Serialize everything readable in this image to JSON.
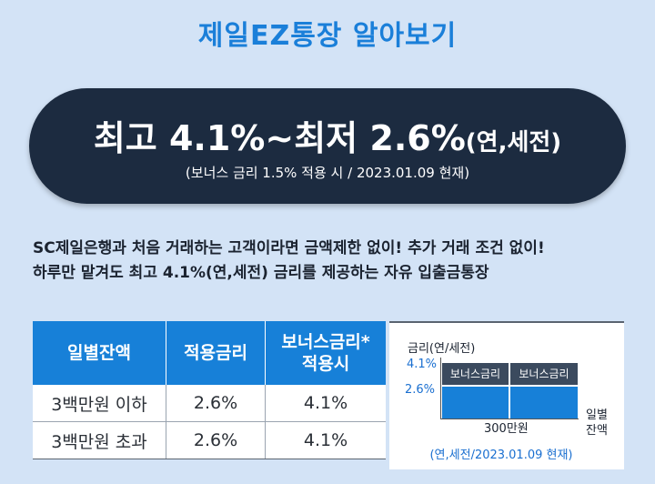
{
  "title": "제일EZ통장 알아보기",
  "headline": {
    "prefix": "최고 ",
    "max_rate": "4.1%",
    "tilde": "~",
    "min_label": "최저 ",
    "min_rate": "2.6%",
    "suffix": "(연,세전)",
    "note": "(보너스 금리 1.5% 적용 시 / 2023.01.09 현재)"
  },
  "description": [
    "SC제일은행과 처음 거래하는 고객이라면 금액제한 없이! 추가 거래 조건 없이!",
    "하루만 맡겨도 최고 4.1%(연,세전) 금리를 제공하는 자유 입출금통장"
  ],
  "table": {
    "headers": [
      "일별잔액",
      "적용금리",
      "보너스금리*",
      "적용시"
    ],
    "rows": [
      [
        "3백만원 이하",
        "2.6%",
        "4.1%"
      ],
      [
        "3백만원 초과",
        "2.6%",
        "4.1%"
      ]
    ]
  },
  "diagram": {
    "y_label": "금리(연/세전)",
    "y_ticks": [
      "4.1%",
      "2.6%"
    ],
    "bonus_label": "보너스금리",
    "x_tick": "300만원",
    "x_label_1": "일별",
    "x_label_2": "잔액",
    "note": "(연,세전/2023.01.09 현재)",
    "colors": {
      "base": "#1780d8",
      "bonus": "#3b4a5e"
    }
  }
}
